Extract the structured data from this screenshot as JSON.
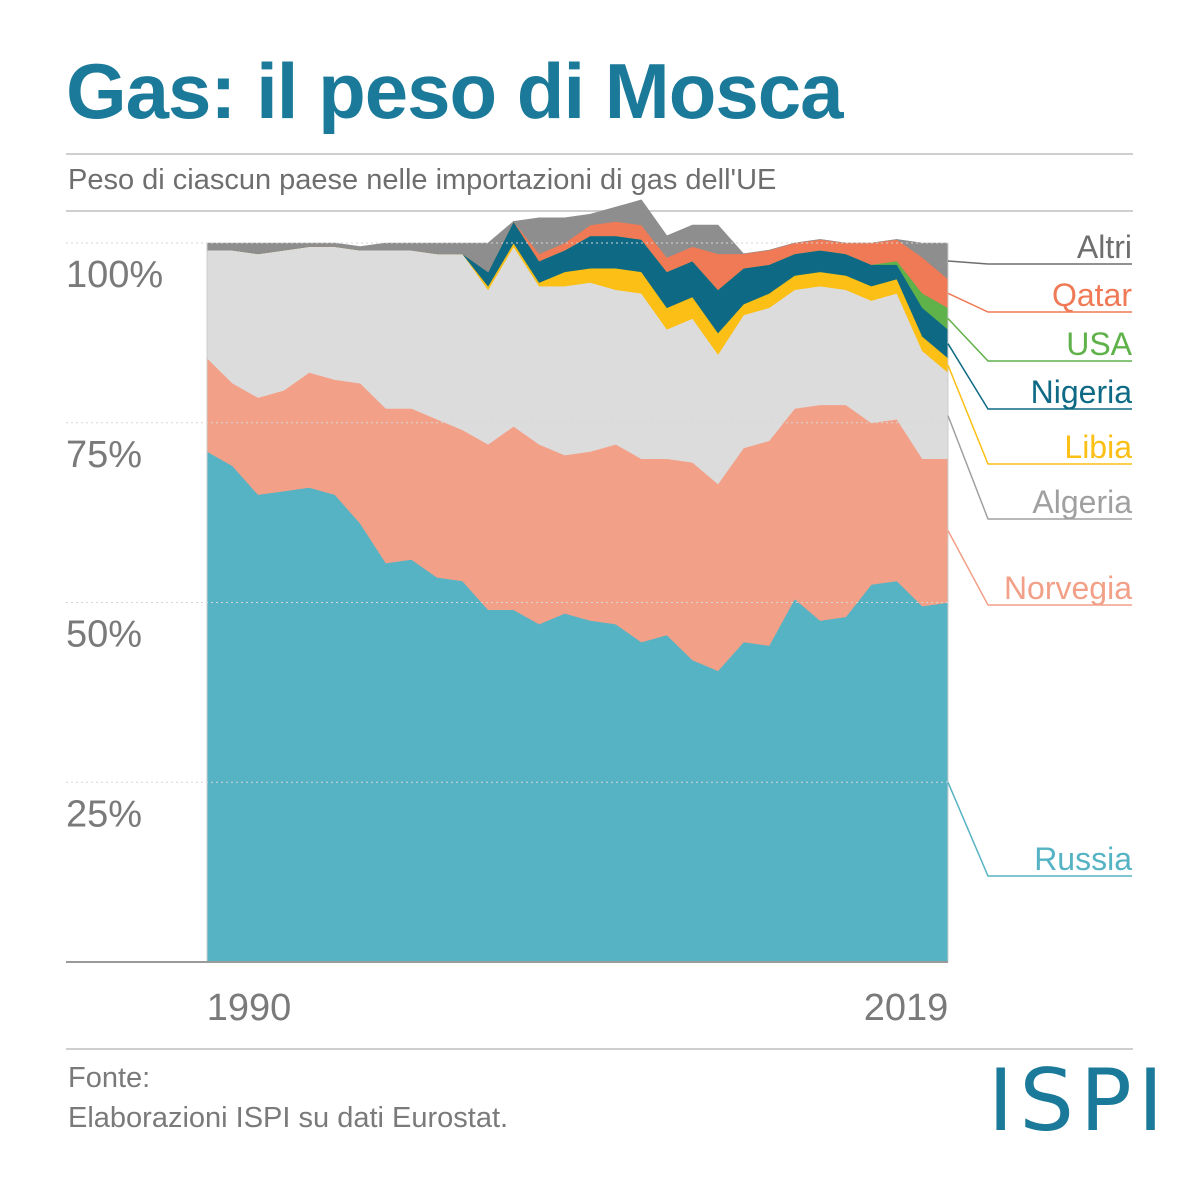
{
  "header": {
    "title": "Gas: il peso di Mosca",
    "subtitle": "Peso di ciascun paese nelle importazioni di gas dell'UE"
  },
  "footer": {
    "source_label": "Fonte:",
    "source_text": "Elaborazioni ISPI su dati Eurostat.",
    "logo": "ISPI"
  },
  "chart_data": {
    "type": "area",
    "stacked": true,
    "ytick_labels": [
      "100%",
      "75%",
      "50%",
      "25%"
    ],
    "yticks": [
      100,
      75,
      50,
      25
    ],
    "ylim": [
      0,
      100
    ],
    "xtick_labels": [
      "1990",
      "2019"
    ],
    "x": [
      1990,
      1991,
      1992,
      1993,
      1994,
      1995,
      1996,
      1997,
      1998,
      1999,
      2000,
      2001,
      2002,
      2003,
      2004,
      2005,
      2006,
      2007,
      2008,
      2009,
      2010,
      2011,
      2012,
      2013,
      2014,
      2015,
      2016,
      2017,
      2018,
      2019
    ],
    "grid": true,
    "legend": "right, direct labels",
    "series": [
      {
        "name": "Russia",
        "color": "#56b3c4",
        "values": [
          71,
          69,
          65,
          65.5,
          66,
          65,
          61,
          55.5,
          56,
          53.5,
          53,
          49,
          49,
          47,
          48.5,
          47.5,
          47,
          44.5,
          45.5,
          42,
          40.5,
          44.5,
          44,
          50.5,
          47.5,
          48,
          52.5,
          53,
          49.5,
          50
        ]
      },
      {
        "name": "Norvegia",
        "color": "#f2a088",
        "values": [
          13,
          11.5,
          13.5,
          14,
          16,
          16,
          19.5,
          21.5,
          21,
          22,
          21,
          23,
          25.5,
          25,
          22,
          23.5,
          25,
          25.5,
          24.5,
          27.5,
          26,
          27,
          28.5,
          26.5,
          30,
          29.5,
          22.5,
          22.5,
          20.5,
          20
        ]
      },
      {
        "name": "Algeria",
        "color": "#dcdcdc",
        "values": [
          15,
          18.5,
          20,
          19.5,
          17.5,
          18.5,
          18.5,
          22,
          22,
          23,
          24.5,
          21.5,
          25,
          22,
          23.5,
          23.5,
          21.5,
          23,
          18,
          20,
          18,
          18.5,
          18.5,
          16.5,
          16.5,
          16,
          17,
          17.5,
          15,
          12
        ]
      },
      {
        "name": "Libia",
        "color": "#fbbf15",
        "values": [
          0,
          0,
          0,
          0,
          0,
          0,
          0,
          0,
          0,
          0,
          0,
          0.5,
          0.5,
          0.5,
          2,
          2,
          3,
          3,
          3,
          3,
          3,
          1.5,
          2,
          2,
          2,
          2,
          2,
          2,
          2,
          2
        ]
      },
      {
        "name": "Nigeria",
        "color": "#0e6a84",
        "values": [
          0,
          0,
          0,
          0,
          0,
          0,
          0,
          0,
          0,
          0,
          0,
          2,
          3,
          3,
          3,
          4.5,
          4.5,
          4.5,
          5,
          5,
          6,
          5,
          4,
          3,
          3,
          3,
          3,
          2,
          4,
          4
        ]
      },
      {
        "name": "USA",
        "color": "#5fb14a",
        "values": [
          0,
          0,
          0,
          0,
          0,
          0,
          0,
          0,
          0,
          0,
          0,
          0,
          0,
          0,
          0,
          0,
          0,
          0,
          0,
          0,
          0,
          0,
          0,
          0,
          0,
          0,
          0,
          0.5,
          2,
          3
        ]
      },
      {
        "name": "Qatar",
        "color": "#ef7a55",
        "values": [
          0,
          0,
          0,
          0,
          0,
          0,
          0,
          0,
          0,
          0,
          0,
          0,
          0,
          1,
          1,
          1.5,
          2,
          2,
          2,
          2,
          5,
          2,
          2,
          1.5,
          1.5,
          1.5,
          3,
          3,
          5,
          4
        ]
      },
      {
        "name": "Altri",
        "color": "#8e8e8e",
        "values": [
          1,
          1,
          1.5,
          1,
          0.5,
          0.5,
          0.5,
          1,
          1,
          1.5,
          1.5,
          4,
          0,
          5,
          3.5,
          1.5,
          2,
          3.5,
          3,
          3,
          4,
          0,
          0,
          0,
          0,
          0,
          0,
          0,
          2,
          5
        ]
      }
    ]
  }
}
